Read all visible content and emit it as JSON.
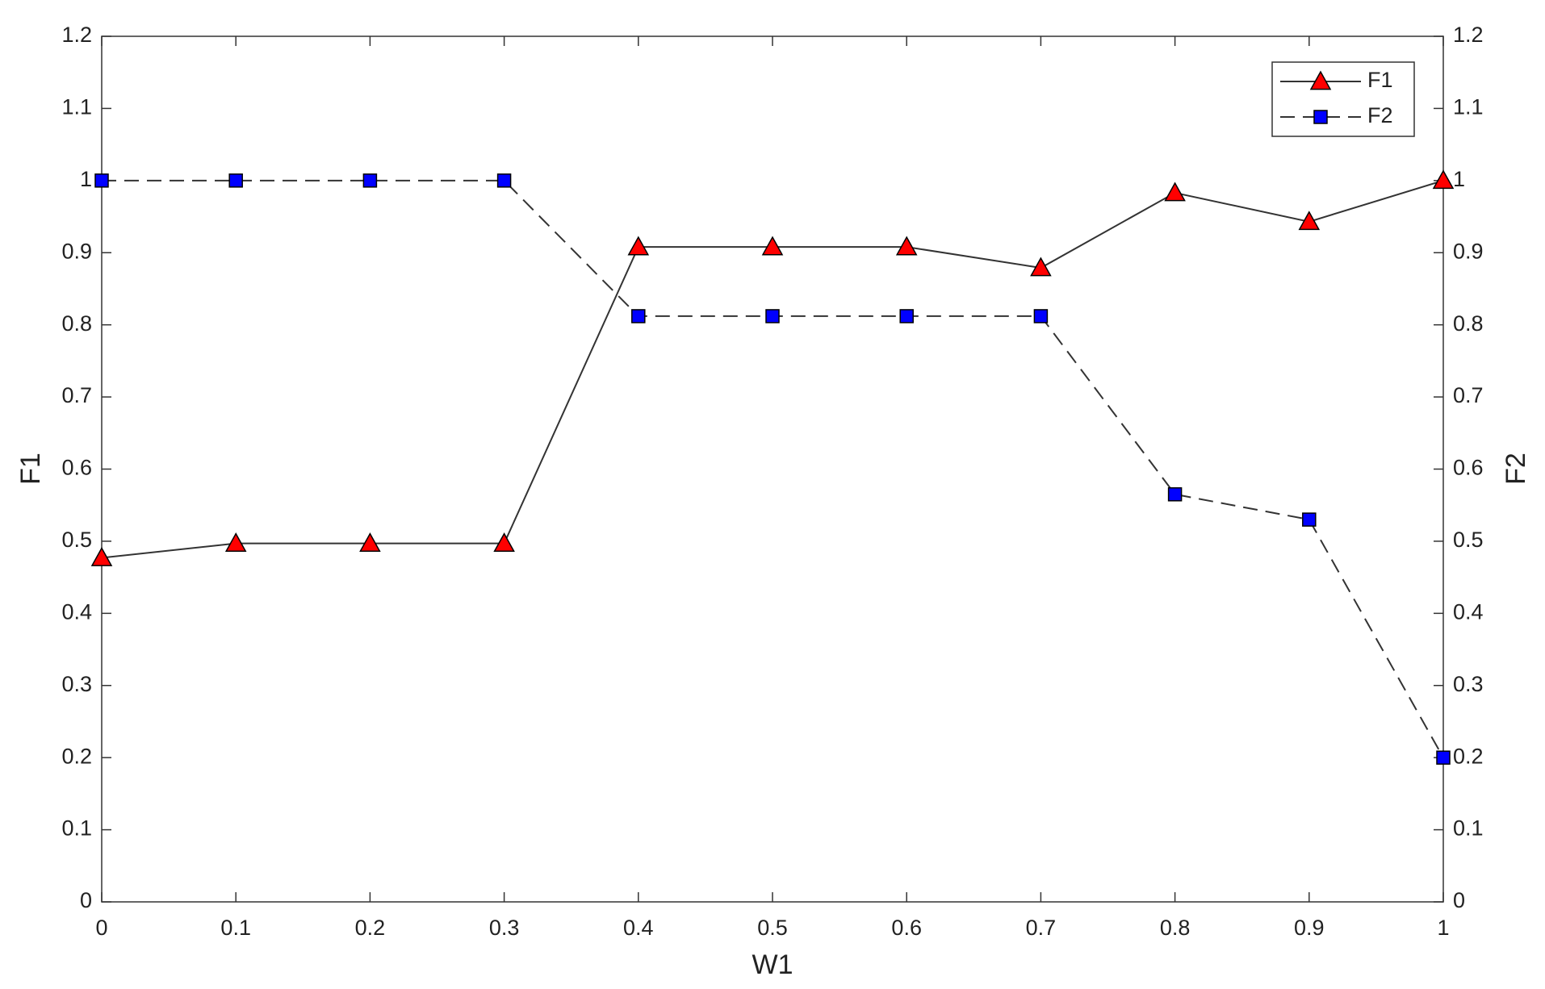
{
  "chart_data": {
    "type": "line",
    "xlabel": "W1",
    "ylabel": "F1",
    "y2label": "F2",
    "x": [
      0,
      0.1,
      0.2,
      0.3,
      0.4,
      0.5,
      0.6,
      0.7,
      0.8,
      0.9,
      1
    ],
    "series": [
      {
        "name": "F1",
        "color": "#ff0000",
        "linestyle": "solid",
        "marker": "triangle",
        "axis": "y",
        "values": [
          0.477,
          0.497,
          0.497,
          0.497,
          0.908,
          0.908,
          0.908,
          0.879,
          0.983,
          0.943,
          1.0
        ]
      },
      {
        "name": "F2",
        "color": "#0000ff",
        "linestyle": "dashed",
        "marker": "square",
        "axis": "y2",
        "values": [
          1.0,
          1.0,
          1.0,
          1.0,
          0.812,
          0.812,
          0.812,
          0.812,
          0.565,
          0.53,
          0.2
        ]
      }
    ],
    "xlim": [
      0,
      1
    ],
    "xticks": [
      0,
      0.1,
      0.2,
      0.3,
      0.4,
      0.5,
      0.6,
      0.7,
      0.8,
      0.9,
      1
    ],
    "ylim": [
      0,
      1.2
    ],
    "yticks": [
      0,
      0.1,
      0.2,
      0.3,
      0.4,
      0.5,
      0.6,
      0.7,
      0.8,
      0.9,
      1,
      1.1,
      1.2
    ],
    "y2lim": [
      0,
      1.2
    ],
    "y2ticks": [
      0,
      0.1,
      0.2,
      0.3,
      0.4,
      0.5,
      0.6,
      0.7,
      0.8,
      0.9,
      1,
      1.1,
      1.2
    ],
    "legend": "upper right"
  }
}
